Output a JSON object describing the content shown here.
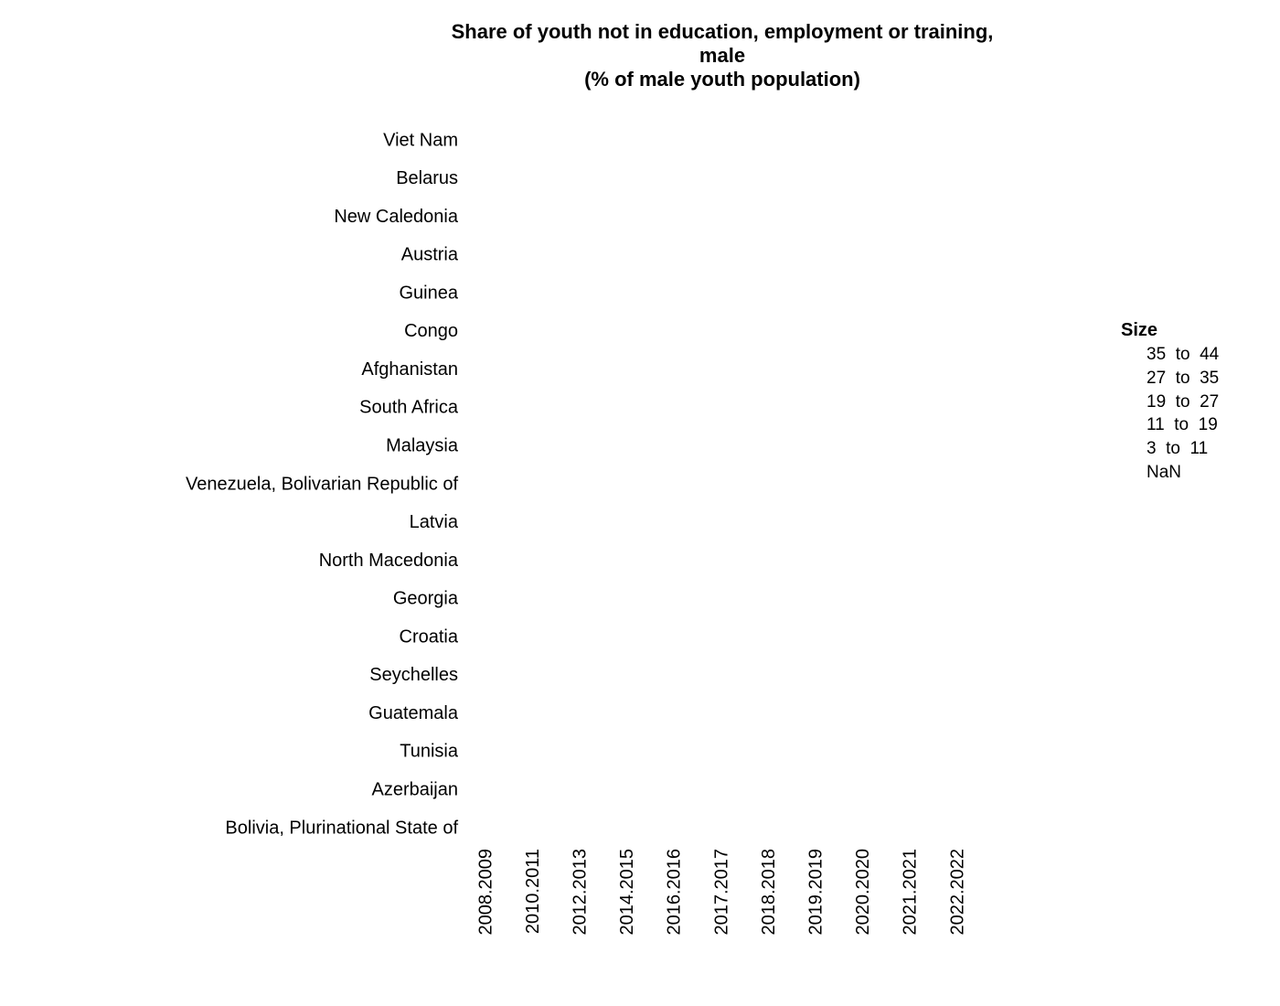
{
  "chart_data": {
    "type": "scatter",
    "title_lines": [
      "Share of youth not in education, employment or training,",
      "male",
      "(% of male youth population)"
    ],
    "xlabel": "",
    "ylabel": "",
    "x": [
      "2008.2009",
      "2010.2011",
      "2012.2013",
      "2014.2015",
      "2016.2016",
      "2017.2017",
      "2018.2018",
      "2019.2019",
      "2020.2020",
      "2021.2021",
      "2022.2022"
    ],
    "y": [
      "Viet Nam",
      "Belarus",
      "New Caledonia",
      "Austria",
      "Guinea",
      "Congo",
      "Afghanistan",
      "South Africa",
      "Malaysia",
      "Venezuela, Bolivarian Republic of",
      "Latvia",
      "North Macedonia",
      "Georgia",
      "Croatia",
      "Seychelles",
      "Guatemala",
      "Tunisia",
      "Azerbaijan",
      "Bolivia, Plurinational State of"
    ],
    "values": [],
    "legend": {
      "title": "Size",
      "position": "right",
      "items": [
        "35  to  44",
        "27  to  35",
        "19  to  27",
        "11  to  19",
        "3  to  11",
        "NaN"
      ]
    },
    "grid": false
  }
}
